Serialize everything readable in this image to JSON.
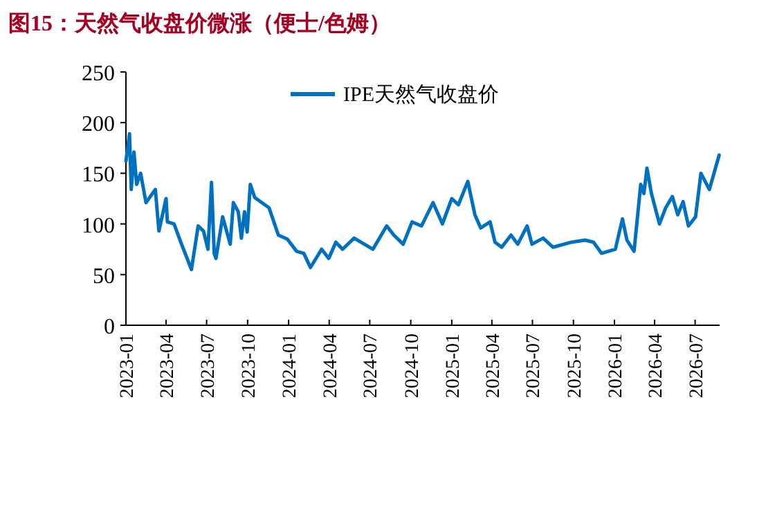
{
  "chart_data": {
    "type": "line",
    "title": "图15：天然气收盘价微涨（便士/色姆）",
    "x": [
      "2023-01-01",
      "2023-01-09",
      "2023-01-13",
      "2023-01-19",
      "2023-01-25",
      "2023-02-03",
      "2023-02-15",
      "2023-03-08",
      "2023-03-16",
      "2023-04-01",
      "2023-04-04",
      "2023-04-19",
      "2023-05-04",
      "2023-05-28",
      "2023-06-12",
      "2023-06-24",
      "2023-07-04",
      "2023-07-12",
      "2023-07-18",
      "2023-07-22",
      "2023-08-06",
      "2023-08-23",
      "2023-08-30",
      "2023-09-10",
      "2023-09-17",
      "2023-09-24",
      "2023-09-30",
      "2023-10-07",
      "2023-10-17",
      "2023-11-18",
      "2023-12-09",
      "2023-12-29",
      "2024-01-19",
      "2024-02-04",
      "2024-02-19",
      "2024-03-15",
      "2024-03-31",
      "2024-04-16",
      "2024-05-01",
      "2024-05-27",
      "2024-07-08",
      "2024-08-08",
      "2024-08-24",
      "2024-09-14",
      "2024-10-04",
      "2024-10-25",
      "2024-11-20",
      "2024-12-11",
      "2025-01-01",
      "2025-01-16",
      "2025-02-06",
      "2025-02-22",
      "2025-03-07",
      "2025-03-28",
      "2025-04-08",
      "2025-04-23",
      "2025-05-14",
      "2025-05-29",
      "2025-06-19",
      "2025-06-30",
      "2025-07-25",
      "2025-08-16",
      "2025-09-27",
      "2025-10-27",
      "2025-11-15",
      "2025-12-03",
      "2026-01-03",
      "2026-01-19",
      "2026-01-29",
      "2026-02-14",
      "2026-03-01",
      "2026-03-08",
      "2026-03-15",
      "2026-03-25",
      "2026-04-12",
      "2026-04-26",
      "2026-05-11",
      "2026-05-23",
      "2026-06-04",
      "2026-06-16",
      "2026-07-02",
      "2026-07-14",
      "2026-08-02",
      "2026-08-24"
    ],
    "series": [
      {
        "name": "IPE天然气收盘价",
        "color": "#0070c0",
        "values": [
          162,
          189,
          134,
          171,
          139,
          150,
          121,
          134,
          93,
          125,
          102,
          100,
          82,
          55,
          98,
          93,
          75,
          141,
          71,
          66,
          107,
          80,
          121,
          112,
          86,
          112,
          92,
          139,
          126,
          116,
          89,
          85,
          73,
          71,
          57,
          75,
          66,
          82,
          75,
          86,
          75,
          98,
          89,
          80,
          102,
          98,
          121,
          100,
          125,
          119,
          142,
          109,
          96,
          102,
          82,
          77,
          89,
          80,
          98,
          80,
          86,
          77,
          82,
          84,
          82,
          71,
          75,
          105,
          84,
          73,
          139,
          130,
          155,
          130,
          100,
          116,
          127,
          109,
          122,
          98,
          107,
          150,
          134,
          168
        ]
      }
    ],
    "xlim": [
      "2023-01-01",
      "2026-08-25"
    ],
    "xticks": [
      {
        "value": "2023-01-01",
        "label": "2023-01"
      },
      {
        "value": "2023-04-01",
        "label": "2023-04"
      },
      {
        "value": "2023-07-01",
        "label": "2023-07"
      },
      {
        "value": "2023-10-01",
        "label": "2023-10"
      },
      {
        "value": "2024-01-01",
        "label": "2024-01"
      },
      {
        "value": "2024-04-01",
        "label": "2024-04"
      },
      {
        "value": "2024-07-01",
        "label": "2024-07"
      },
      {
        "value": "2024-10-01",
        "label": "2024-10"
      },
      {
        "value": "2025-01-01",
        "label": "2025-01"
      },
      {
        "value": "2025-04-01",
        "label": "2025-04"
      },
      {
        "value": "2025-07-01",
        "label": "2025-07"
      },
      {
        "value": "2025-10-01",
        "label": "2025-10"
      },
      {
        "value": "2026-01-01",
        "label": "2026-01"
      },
      {
        "value": "2026-04-01",
        "label": "2026-04"
      },
      {
        "value": "2026-07-01",
        "label": "2026-07"
      }
    ],
    "ylim": [
      0,
      250
    ],
    "yticks": [
      0,
      50,
      100,
      150,
      200,
      250
    ],
    "legend": "top",
    "grid": false,
    "marker": "none",
    "line_style": "solid"
  }
}
